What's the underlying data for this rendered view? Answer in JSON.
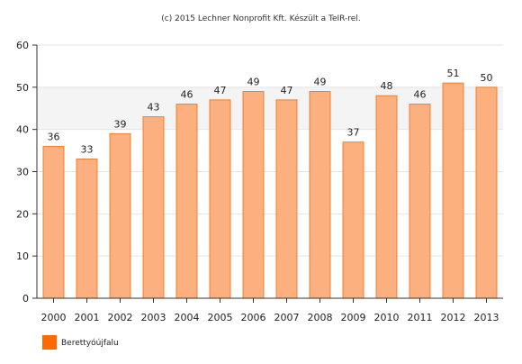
{
  "chart_data": {
    "type": "bar",
    "credit": "(c) 2015 Lechner Nonprofit Kft. Készült a TeIR-rel.",
    "categories": [
      "2000",
      "2001",
      "2002",
      "2003",
      "2004",
      "2005",
      "2006",
      "2007",
      "2008",
      "2009",
      "2010",
      "2011",
      "2012",
      "2013"
    ],
    "series": [
      {
        "name": "Berettyóújfalu",
        "values": [
          36,
          33,
          39,
          43,
          46,
          47,
          49,
          47,
          49,
          37,
          48,
          46,
          51,
          50
        ]
      }
    ],
    "ylim": [
      0,
      60
    ],
    "yticks": [
      0,
      10,
      20,
      30,
      40,
      50,
      60
    ],
    "ytick_labels": [
      "0",
      "10",
      "20",
      "30",
      "40",
      "50",
      "60"
    ],
    "grid": true,
    "shaded_band": [
      40,
      50
    ],
    "legend": "bottom-left",
    "data_labels": true,
    "colors": {
      "bar_fill": "#fdb07f",
      "bar_stroke": "#f07f2c",
      "legend_swatch": "#ff6a00",
      "grid": "#e4e4e4",
      "band": "#f4f4f4",
      "axis": "#333333"
    }
  }
}
